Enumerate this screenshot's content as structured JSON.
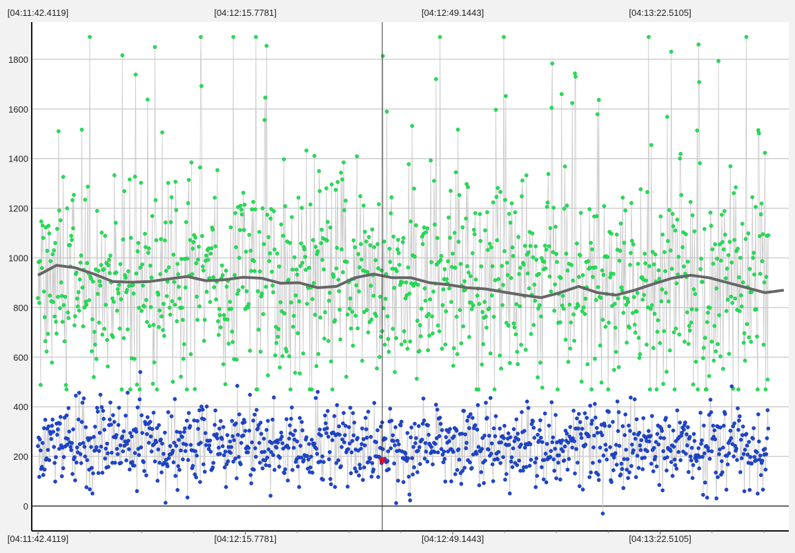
{
  "chart_data": {
    "type": "scatter",
    "title": "",
    "xlabel": "",
    "ylabel": "",
    "x_tick_labels": [
      "[04:11:42.4119]",
      "[04:12:15.7781]",
      "[04:12:49.1443]",
      "[04:13:22.5105]"
    ],
    "x_ticks_seconds_from_first": [
      0,
      33.3662,
      66.7324,
      100.0986
    ],
    "xlim_seconds_from_first": [
      -1.0,
      120.8
    ],
    "y_ticks": [
      0,
      200,
      400,
      600,
      800,
      1000,
      1200,
      1400,
      1600,
      1800
    ],
    "ylim": [
      -100,
      1950
    ],
    "grid": true,
    "cursor_x_seconds_from_first": 55.4,
    "selected_point": {
      "x_seconds_from_first": 55.4,
      "y": 185
    },
    "series": [
      {
        "name": "",
        "color": "#22e055",
        "values_estimated_range": [
          470,
          1890
        ],
        "typical_center": 900
      },
      {
        "name": "",
        "color": "#1f45d0",
        "values_estimated_range": [
          -30,
          540
        ],
        "typical_center": 240
      },
      {
        "name": "",
        "color": "#666666",
        "kind": "moving-average",
        "points": [
          [
            0,
            930
          ],
          [
            3,
            970
          ],
          [
            6,
            960
          ],
          [
            9,
            935
          ],
          [
            12,
            905
          ],
          [
            15,
            902
          ],
          [
            18,
            905
          ],
          [
            21,
            915
          ],
          [
            24,
            925
          ],
          [
            27,
            908
          ],
          [
            30,
            912
          ],
          [
            33,
            922
          ],
          [
            36,
            918
          ],
          [
            39,
            898
          ],
          [
            42,
            900
          ],
          [
            45,
            880
          ],
          [
            48,
            885
          ],
          [
            51,
            920
          ],
          [
            54,
            935
          ],
          [
            57,
            920
          ],
          [
            60,
            920
          ],
          [
            63,
            900
          ],
          [
            66,
            892
          ],
          [
            69,
            880
          ],
          [
            72,
            875
          ],
          [
            75,
            862
          ],
          [
            78,
            850
          ],
          [
            81,
            840
          ],
          [
            84,
            860
          ],
          [
            87,
            885
          ],
          [
            90,
            860
          ],
          [
            93,
            850
          ],
          [
            96,
            870
          ],
          [
            99,
            895
          ],
          [
            102,
            918
          ],
          [
            105,
            930
          ],
          [
            108,
            920
          ],
          [
            111,
            900
          ],
          [
            114,
            880
          ],
          [
            117,
            860
          ],
          [
            120,
            870
          ]
        ]
      }
    ],
    "series_colors": {
      "green": "#22e055",
      "blue": "#1f45d0",
      "average": "#666666",
      "selected": "#e01020"
    }
  }
}
